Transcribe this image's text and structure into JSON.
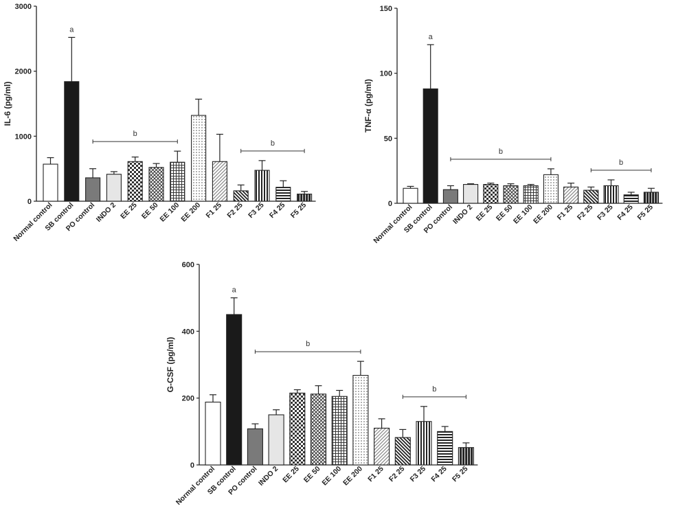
{
  "chart_data": [
    {
      "type": "bar",
      "ylabel": "IL-6 (pg/ml)",
      "ylim": [
        0,
        3000
      ],
      "yticks": [
        0,
        1000,
        2000,
        3000
      ],
      "categories": [
        "Normal control",
        "SB control",
        "PO control",
        "INDO 2",
        "EE 25",
        "EE 50",
        "EE 100",
        "EE 200",
        "F1 25",
        "F2 25",
        "F3 25",
        "F4 25",
        "F5 25"
      ],
      "values": [
        570,
        1840,
        360,
        415,
        610,
        520,
        600,
        1320,
        610,
        160,
        475,
        215,
        110
      ],
      "errors": [
        100,
        680,
        140,
        40,
        70,
        60,
        170,
        250,
        420,
        90,
        150,
        100,
        40
      ],
      "annotations": [
        {
          "text": "a",
          "over": [
            1,
            1
          ]
        },
        {
          "text": "b",
          "over": [
            2,
            6
          ]
        },
        {
          "text": "b",
          "over": [
            9,
            12
          ]
        }
      ]
    },
    {
      "type": "bar",
      "ylabel": "TNF-α (pg/ml)",
      "ylim": [
        0,
        150
      ],
      "yticks": [
        0,
        50,
        100,
        150
      ],
      "categories": [
        "Normal control",
        "SB control",
        "PO control",
        "INDO 2",
        "EE 25",
        "EE 50",
        "EE 100",
        "EE 200",
        "F1 25",
        "F2 25",
        "F3 25",
        "F4 25",
        "F5 25"
      ],
      "values": [
        11.5,
        88,
        10.5,
        14.5,
        14.5,
        13.5,
        13.5,
        22,
        12.5,
        10,
        13.5,
        6.5,
        8.5
      ],
      "errors": [
        1.5,
        34,
        3,
        0.5,
        1,
        1.5,
        1,
        4.5,
        3,
        2.5,
        4.5,
        2,
        3
      ],
      "annotations": [
        {
          "text": "a",
          "over": [
            1,
            1
          ]
        },
        {
          "text": "b",
          "over": [
            2,
            7
          ]
        },
        {
          "text": "b",
          "over": [
            9,
            12
          ]
        }
      ]
    },
    {
      "type": "bar",
      "ylabel": "G-CSF (pg/ml)",
      "ylim": [
        0,
        600
      ],
      "yticks": [
        0,
        200,
        400,
        600
      ],
      "categories": [
        "Normal control",
        "SB control",
        "PO control",
        "INDO 2",
        "EE 25",
        "EE 50",
        "EE 100",
        "EE 200",
        "F1 25",
        "F2 25",
        "F3 25",
        "F4 25",
        "F5 25"
      ],
      "values": [
        188,
        450,
        108,
        150,
        215,
        212,
        205,
        268,
        110,
        82,
        130,
        100,
        52
      ],
      "errors": [
        22,
        50,
        15,
        15,
        10,
        25,
        18,
        42,
        28,
        24,
        45,
        15,
        14
      ],
      "annotations": [
        {
          "text": "a",
          "over": [
            1,
            1
          ]
        },
        {
          "text": "b",
          "over": [
            2,
            7
          ]
        },
        {
          "text": "b",
          "over": [
            9,
            12
          ]
        }
      ]
    }
  ]
}
